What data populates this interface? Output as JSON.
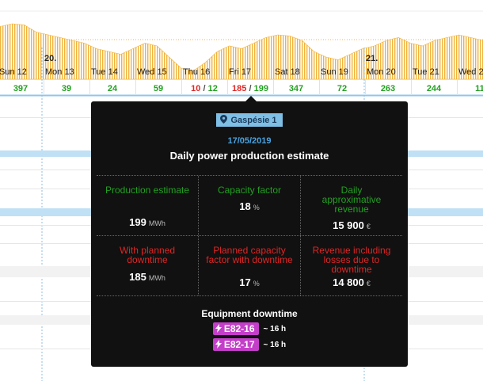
{
  "timeline": {
    "production_curve": [
      95,
      100,
      98,
      85,
      80,
      75,
      70,
      65,
      55,
      50,
      45,
      55,
      65,
      60,
      40,
      20,
      15,
      30,
      50,
      60,
      55,
      65,
      75,
      80,
      78,
      70,
      50,
      40,
      35,
      45,
      55,
      60,
      70,
      75,
      65,
      60,
      70,
      75,
      80,
      75,
      70
    ],
    "separator": "/",
    "days": [
      {
        "label": "Sun 12",
        "estimate": 397
      },
      {
        "label": "Mon 13",
        "week": "20.",
        "estimate": 39
      },
      {
        "label": "Tue 14",
        "estimate": 24
      },
      {
        "label": "Wed 15",
        "estimate": 59
      },
      {
        "label": "Thu 16",
        "planned": 10,
        "estimate": 12
      },
      {
        "label": "Fri 17",
        "planned": 185,
        "estimate": 199
      },
      {
        "label": "Sat 18",
        "estimate": 347
      },
      {
        "label": "Sun 19",
        "estimate": 72
      },
      {
        "label": "Mon 20",
        "week": "21.",
        "estimate": 263
      },
      {
        "label": "Tue 21",
        "estimate": 244
      },
      {
        "label": "Wed 2",
        "estimate": 11
      }
    ]
  },
  "tooltip": {
    "site": "Gaspésie 1",
    "date": "17/05/2019",
    "title": "Daily power production estimate",
    "cells": [
      [
        {
          "label": "Production estimate",
          "value": 199,
          "unit": "MWh"
        },
        {
          "label": "Capacity factor",
          "value": 18,
          "unit": "%"
        },
        {
          "label": "Daily approximative revenue",
          "value": "15 900",
          "unit": "€"
        }
      ],
      [
        {
          "label": "With planned downtime",
          "value": 185,
          "unit": "MWh"
        },
        {
          "label": "Planned capacity factor with downtime",
          "value": 17,
          "unit": "%"
        },
        {
          "label": "Revenue including losses due to downtime",
          "value": "14 800",
          "unit": "€"
        }
      ]
    ],
    "downtime": {
      "title": "Equipment downtime",
      "items": [
        {
          "id": "E82-16",
          "duration": "~ 16 h"
        },
        {
          "id": "E82-17",
          "duration": "~ 16 h"
        }
      ]
    }
  }
}
